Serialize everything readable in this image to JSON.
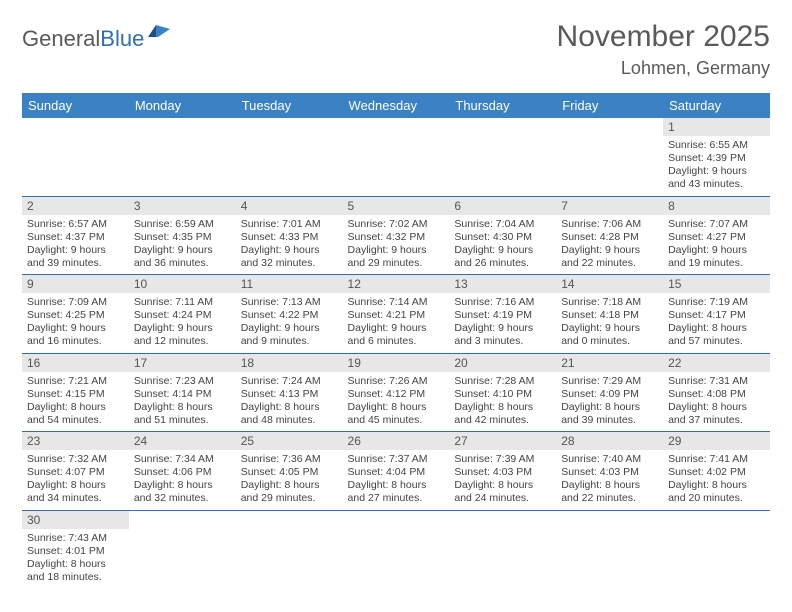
{
  "logo": {
    "text1": "General",
    "text2": "Blue"
  },
  "title": "November 2025",
  "location": "Lohmen, Germany",
  "colors": {
    "header_bg": "#3b82c4",
    "header_text": "#ffffff",
    "rule": "#2f6fb0",
    "daynum_bg": "#e7e7e7",
    "text": "#444444",
    "logo_gray": "#5a5a5a",
    "logo_blue": "#2f6fb0"
  },
  "weekdays": [
    "Sunday",
    "Monday",
    "Tuesday",
    "Wednesday",
    "Thursday",
    "Friday",
    "Saturday"
  ],
  "weeks": [
    [
      {
        "day": "",
        "sunrise": "",
        "sunset": "",
        "daylight": ""
      },
      {
        "day": "",
        "sunrise": "",
        "sunset": "",
        "daylight": ""
      },
      {
        "day": "",
        "sunrise": "",
        "sunset": "",
        "daylight": ""
      },
      {
        "day": "",
        "sunrise": "",
        "sunset": "",
        "daylight": ""
      },
      {
        "day": "",
        "sunrise": "",
        "sunset": "",
        "daylight": ""
      },
      {
        "day": "",
        "sunrise": "",
        "sunset": "",
        "daylight": ""
      },
      {
        "day": "1",
        "sunrise": "Sunrise: 6:55 AM",
        "sunset": "Sunset: 4:39 PM",
        "daylight": "Daylight: 9 hours and 43 minutes."
      }
    ],
    [
      {
        "day": "2",
        "sunrise": "Sunrise: 6:57 AM",
        "sunset": "Sunset: 4:37 PM",
        "daylight": "Daylight: 9 hours and 39 minutes."
      },
      {
        "day": "3",
        "sunrise": "Sunrise: 6:59 AM",
        "sunset": "Sunset: 4:35 PM",
        "daylight": "Daylight: 9 hours and 36 minutes."
      },
      {
        "day": "4",
        "sunrise": "Sunrise: 7:01 AM",
        "sunset": "Sunset: 4:33 PM",
        "daylight": "Daylight: 9 hours and 32 minutes."
      },
      {
        "day": "5",
        "sunrise": "Sunrise: 7:02 AM",
        "sunset": "Sunset: 4:32 PM",
        "daylight": "Daylight: 9 hours and 29 minutes."
      },
      {
        "day": "6",
        "sunrise": "Sunrise: 7:04 AM",
        "sunset": "Sunset: 4:30 PM",
        "daylight": "Daylight: 9 hours and 26 minutes."
      },
      {
        "day": "7",
        "sunrise": "Sunrise: 7:06 AM",
        "sunset": "Sunset: 4:28 PM",
        "daylight": "Daylight: 9 hours and 22 minutes."
      },
      {
        "day": "8",
        "sunrise": "Sunrise: 7:07 AM",
        "sunset": "Sunset: 4:27 PM",
        "daylight": "Daylight: 9 hours and 19 minutes."
      }
    ],
    [
      {
        "day": "9",
        "sunrise": "Sunrise: 7:09 AM",
        "sunset": "Sunset: 4:25 PM",
        "daylight": "Daylight: 9 hours and 16 minutes."
      },
      {
        "day": "10",
        "sunrise": "Sunrise: 7:11 AM",
        "sunset": "Sunset: 4:24 PM",
        "daylight": "Daylight: 9 hours and 12 minutes."
      },
      {
        "day": "11",
        "sunrise": "Sunrise: 7:13 AM",
        "sunset": "Sunset: 4:22 PM",
        "daylight": "Daylight: 9 hours and 9 minutes."
      },
      {
        "day": "12",
        "sunrise": "Sunrise: 7:14 AM",
        "sunset": "Sunset: 4:21 PM",
        "daylight": "Daylight: 9 hours and 6 minutes."
      },
      {
        "day": "13",
        "sunrise": "Sunrise: 7:16 AM",
        "sunset": "Sunset: 4:19 PM",
        "daylight": "Daylight: 9 hours and 3 minutes."
      },
      {
        "day": "14",
        "sunrise": "Sunrise: 7:18 AM",
        "sunset": "Sunset: 4:18 PM",
        "daylight": "Daylight: 9 hours and 0 minutes."
      },
      {
        "day": "15",
        "sunrise": "Sunrise: 7:19 AM",
        "sunset": "Sunset: 4:17 PM",
        "daylight": "Daylight: 8 hours and 57 minutes."
      }
    ],
    [
      {
        "day": "16",
        "sunrise": "Sunrise: 7:21 AM",
        "sunset": "Sunset: 4:15 PM",
        "daylight": "Daylight: 8 hours and 54 minutes."
      },
      {
        "day": "17",
        "sunrise": "Sunrise: 7:23 AM",
        "sunset": "Sunset: 4:14 PM",
        "daylight": "Daylight: 8 hours and 51 minutes."
      },
      {
        "day": "18",
        "sunrise": "Sunrise: 7:24 AM",
        "sunset": "Sunset: 4:13 PM",
        "daylight": "Daylight: 8 hours and 48 minutes."
      },
      {
        "day": "19",
        "sunrise": "Sunrise: 7:26 AM",
        "sunset": "Sunset: 4:12 PM",
        "daylight": "Daylight: 8 hours and 45 minutes."
      },
      {
        "day": "20",
        "sunrise": "Sunrise: 7:28 AM",
        "sunset": "Sunset: 4:10 PM",
        "daylight": "Daylight: 8 hours and 42 minutes."
      },
      {
        "day": "21",
        "sunrise": "Sunrise: 7:29 AM",
        "sunset": "Sunset: 4:09 PM",
        "daylight": "Daylight: 8 hours and 39 minutes."
      },
      {
        "day": "22",
        "sunrise": "Sunrise: 7:31 AM",
        "sunset": "Sunset: 4:08 PM",
        "daylight": "Daylight: 8 hours and 37 minutes."
      }
    ],
    [
      {
        "day": "23",
        "sunrise": "Sunrise: 7:32 AM",
        "sunset": "Sunset: 4:07 PM",
        "daylight": "Daylight: 8 hours and 34 minutes."
      },
      {
        "day": "24",
        "sunrise": "Sunrise: 7:34 AM",
        "sunset": "Sunset: 4:06 PM",
        "daylight": "Daylight: 8 hours and 32 minutes."
      },
      {
        "day": "25",
        "sunrise": "Sunrise: 7:36 AM",
        "sunset": "Sunset: 4:05 PM",
        "daylight": "Daylight: 8 hours and 29 minutes."
      },
      {
        "day": "26",
        "sunrise": "Sunrise: 7:37 AM",
        "sunset": "Sunset: 4:04 PM",
        "daylight": "Daylight: 8 hours and 27 minutes."
      },
      {
        "day": "27",
        "sunrise": "Sunrise: 7:39 AM",
        "sunset": "Sunset: 4:03 PM",
        "daylight": "Daylight: 8 hours and 24 minutes."
      },
      {
        "day": "28",
        "sunrise": "Sunrise: 7:40 AM",
        "sunset": "Sunset: 4:03 PM",
        "daylight": "Daylight: 8 hours and 22 minutes."
      },
      {
        "day": "29",
        "sunrise": "Sunrise: 7:41 AM",
        "sunset": "Sunset: 4:02 PM",
        "daylight": "Daylight: 8 hours and 20 minutes."
      }
    ],
    [
      {
        "day": "30",
        "sunrise": "Sunrise: 7:43 AM",
        "sunset": "Sunset: 4:01 PM",
        "daylight": "Daylight: 8 hours and 18 minutes."
      },
      {
        "day": "",
        "sunrise": "",
        "sunset": "",
        "daylight": ""
      },
      {
        "day": "",
        "sunrise": "",
        "sunset": "",
        "daylight": ""
      },
      {
        "day": "",
        "sunrise": "",
        "sunset": "",
        "daylight": ""
      },
      {
        "day": "",
        "sunrise": "",
        "sunset": "",
        "daylight": ""
      },
      {
        "day": "",
        "sunrise": "",
        "sunset": "",
        "daylight": ""
      },
      {
        "day": "",
        "sunrise": "",
        "sunset": "",
        "daylight": ""
      }
    ]
  ]
}
